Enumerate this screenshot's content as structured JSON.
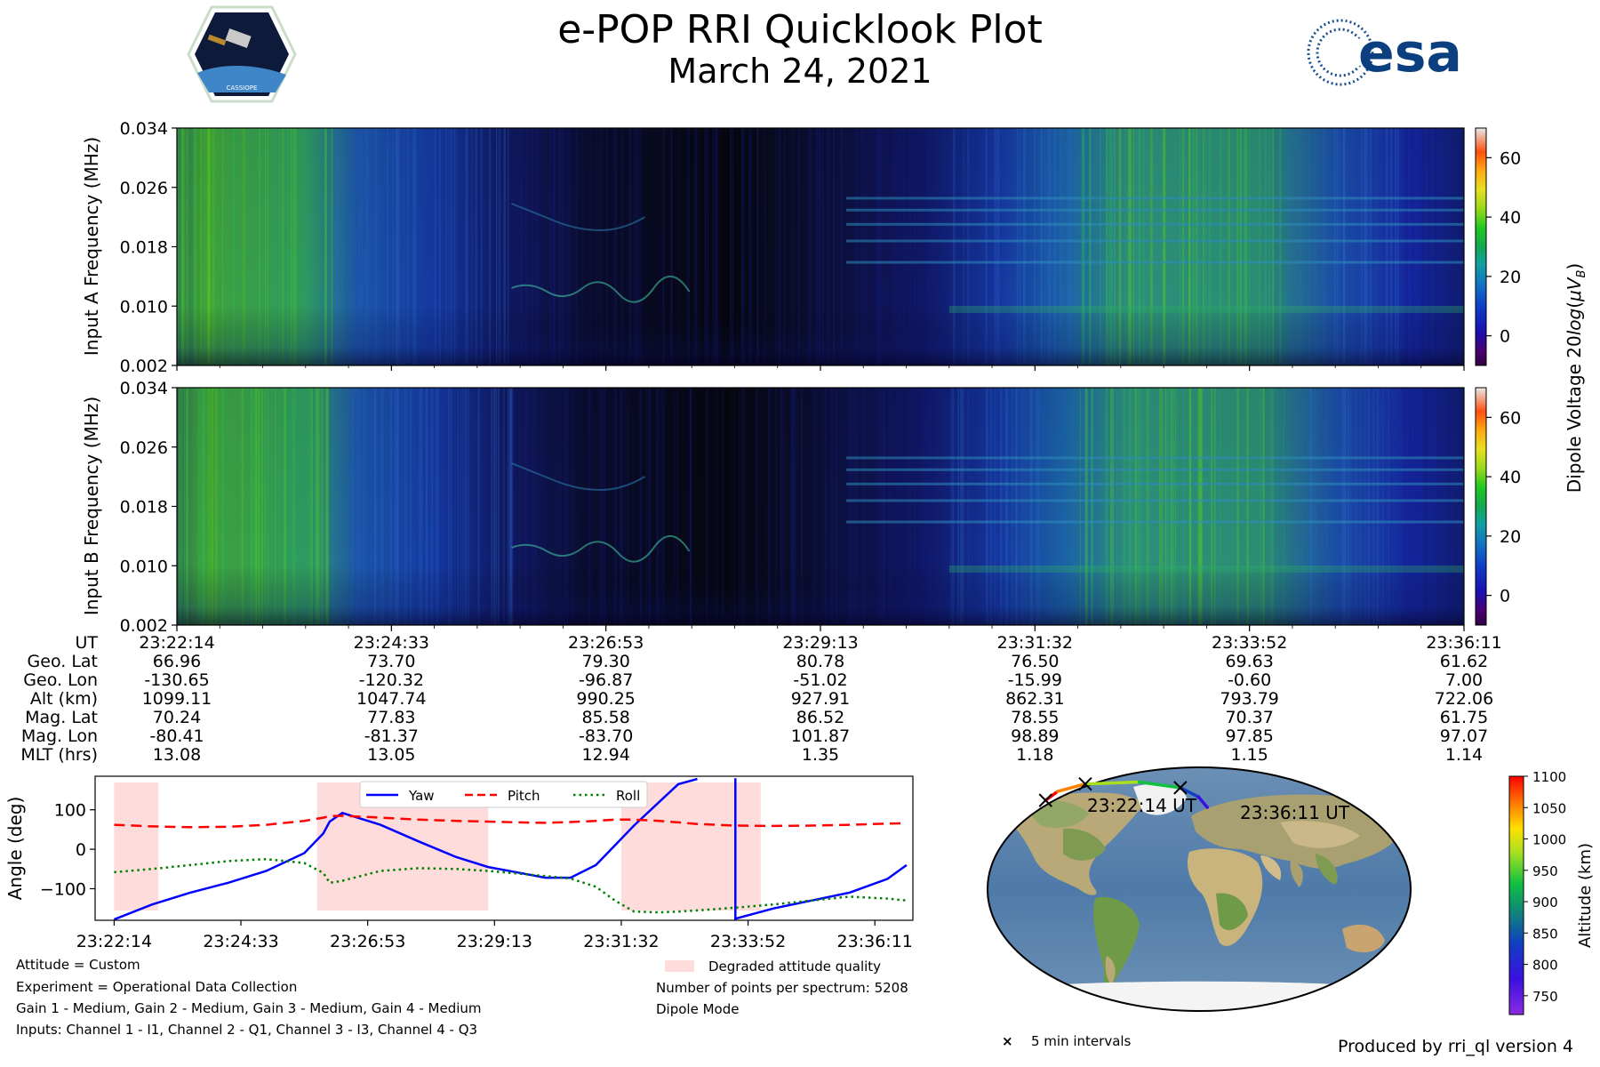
{
  "header": {
    "title": "e-POP RRI Quicklook Plot",
    "subtitle": "March 24, 2021",
    "left_logo_text": "CASSIOPE",
    "right_logo_text": "esa"
  },
  "ephemeris": {
    "labels": [
      "UT",
      "Geo. Lat",
      "Geo. Lon",
      "Alt (km)",
      "Mag. Lat",
      "Mag. Lon",
      "MLT (hrs)"
    ],
    "columns": [
      [
        "23:22:14",
        "66.96",
        "-130.65",
        "1099.11",
        "70.24",
        "-80.41",
        "13.08"
      ],
      [
        "23:24:33",
        "73.70",
        "-120.32",
        "1047.74",
        "77.83",
        "-81.37",
        "13.05"
      ],
      [
        "23:26:53",
        "79.30",
        "-96.87",
        "990.25",
        "85.58",
        "-83.70",
        "12.94"
      ],
      [
        "23:29:13",
        "80.78",
        "-51.02",
        "927.91",
        "86.52",
        "101.87",
        "1.35"
      ],
      [
        "23:31:32",
        "76.50",
        "-15.99",
        "862.31",
        "78.55",
        "98.89",
        "1.18"
      ],
      [
        "23:33:52",
        "69.63",
        "-0.60",
        "793.79",
        "70.37",
        "97.85",
        "1.15"
      ],
      [
        "23:36:11",
        "61.62",
        "7.00",
        "722.06",
        "61.75",
        "97.07",
        "1.14"
      ]
    ]
  },
  "notes_left": [
    "Attitude = Custom",
    "Experiment = Operational Data Collection",
    "Gain 1 - Medium, Gain 2 - Medium, Gain 3 - Medium, Gain 4 - Medium",
    "Inputs: Channel 1 - I1, Channel 2 - Q1, Channel 3 - I3, Channel 4 - Q3"
  ],
  "notes_mid": {
    "legend": "Degraded attitude quality",
    "points": "Number of points per spectrum: 5208",
    "mode": "Dipole Mode"
  },
  "map": {
    "start_label": "23:22:14 UT",
    "end_label": "23:36:11 UT",
    "marker_legend": "5 min intervals"
  },
  "credit": "Produced by rri_ql version 4",
  "colors": {
    "yaw": "#0000ff",
    "pitch": "#ff0000",
    "roll": "#008000",
    "degraded": "#ffdcdc"
  },
  "chart_data": [
    {
      "type": "heatmap",
      "name": "Input A spectrogram",
      "ylabel": "Input A Frequency (MHz)",
      "yticks": [
        "0.002",
        "0.010",
        "0.018",
        "0.026",
        "0.034"
      ],
      "ylim": [
        0.002,
        0.034
      ],
      "colorbar_label": "Dipole Voltage 20log(μV_B)",
      "colorbar_ticks": [
        "0",
        "20",
        "40",
        "60"
      ],
      "colorbar_range": [
        -10,
        70
      ]
    },
    {
      "type": "heatmap",
      "name": "Input B spectrogram",
      "ylabel": "Input B Frequency (MHz)",
      "yticks": [
        "0.002",
        "0.010",
        "0.018",
        "0.026",
        "0.034"
      ],
      "ylim": [
        0.002,
        0.034
      ],
      "colorbar_ticks": [
        "0",
        "20",
        "40",
        "60"
      ],
      "colorbar_range": [
        -10,
        70
      ]
    },
    {
      "type": "line",
      "name": "Attitude",
      "ylabel": "Angle (deg)",
      "yticks": [
        "100",
        "0",
        "−100"
      ],
      "ylim": [
        -180,
        185
      ],
      "xticks": [
        "23:22:14",
        "23:24:33",
        "23:26:53",
        "23:29:13",
        "23:31:32",
        "23:33:52",
        "23:36:11"
      ],
      "xlim": [
        -0.15,
        6.3
      ],
      "degraded_intervals": [
        [
          0.0,
          0.35
        ],
        [
          1.6,
          2.95
        ],
        [
          4.0,
          5.1
        ]
      ],
      "x": [
        0,
        0.3,
        0.6,
        0.9,
        1.2,
        1.5,
        1.65,
        1.7,
        1.8,
        2.1,
        2.4,
        2.7,
        2.95,
        3.2,
        3.4,
        3.6,
        3.8,
        3.95,
        4.1,
        4.3,
        4.45,
        4.6,
        4.9,
        5.2,
        5.5,
        5.8,
        6.1,
        6.25
      ],
      "series": [
        {
          "name": "Yaw",
          "style": "solid",
          "values": [
            -178,
            -140,
            -110,
            -85,
            -55,
            -10,
            40,
            70,
            92,
            62,
            20,
            -20,
            -45,
            -60,
            -72,
            -72,
            -40,
            10,
            60,
            120,
            165,
            178,
            -176,
            -150,
            -130,
            -110,
            -75,
            -40
          ]
        },
        {
          "name": "Pitch",
          "style": "dashed",
          "values": [
            62,
            58,
            56,
            57,
            62,
            72,
            80,
            84,
            85,
            80,
            75,
            72,
            70,
            68,
            67,
            69,
            72,
            75,
            75,
            72,
            68,
            64,
            60,
            59,
            60,
            62,
            65,
            66
          ]
        },
        {
          "name": "Roll",
          "style": "dotted",
          "values": [
            -58,
            -50,
            -40,
            -30,
            -25,
            -35,
            -60,
            -85,
            -80,
            -55,
            -48,
            -50,
            -55,
            -62,
            -68,
            -74,
            -95,
            -130,
            -158,
            -160,
            -158,
            -155,
            -148,
            -140,
            -130,
            -120,
            -125,
            -130
          ]
        }
      ]
    },
    {
      "type": "scatter",
      "name": "Orbit track",
      "colorbar_label": "Altitude (km)",
      "colorbar_ticks": [
        "750",
        "800",
        "850",
        "900",
        "950",
        "1000",
        "1050",
        "1100"
      ],
      "colorbar_range": [
        720,
        1100
      ],
      "track": {
        "lon": [
          -130.65,
          -120.32,
          -96.87,
          -51.02,
          -15.99,
          -0.6,
          7.0
        ],
        "lat": [
          66.96,
          73.7,
          79.3,
          80.78,
          76.5,
          69.63,
          61.62
        ],
        "alt": [
          1099.11,
          1047.74,
          990.25,
          927.91,
          862.31,
          793.79,
          722.06
        ]
      }
    }
  ]
}
